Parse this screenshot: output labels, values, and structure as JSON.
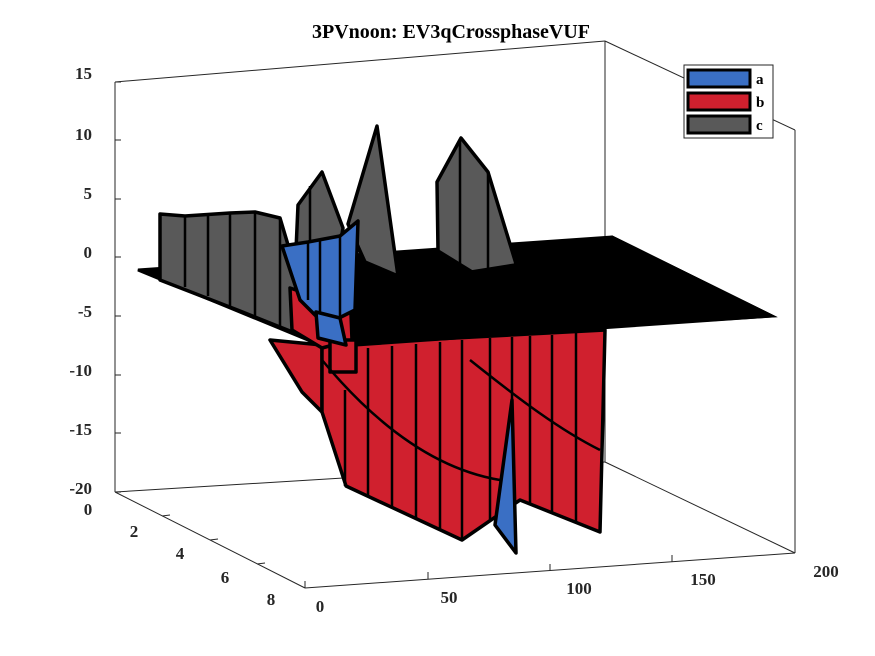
{
  "chart_data": {
    "type": "area",
    "title": "3PVnoon: EV3qCrossphaseVUF",
    "xlabel": "",
    "ylabel": "",
    "zlabel": "",
    "xlim": [
      0,
      200
    ],
    "ylim": [
      0,
      8
    ],
    "zlim": [
      -20,
      15
    ],
    "x_ticks": [
      "0",
      "50",
      "100",
      "150",
      "200"
    ],
    "y_ticks": [
      "0",
      "2",
      "4",
      "6",
      "8"
    ],
    "z_ticks": [
      "15",
      "10",
      "5",
      "0",
      "-5",
      "-10",
      "-15",
      "-20"
    ],
    "legend_position": "top-right",
    "colors": {
      "a": "#3a6fc4",
      "b": "#d0202e",
      "c": "#595959",
      "flat": "#000000"
    },
    "series": [
      {
        "name": "a",
        "description": "ribbon slab near y=3",
        "points": [
          [
            0,
            3,
            -1
          ],
          [
            0,
            3,
            0.5
          ],
          [
            5,
            3,
            2
          ],
          [
            8,
            3,
            3
          ],
          [
            11,
            3,
            5.5
          ],
          [
            15,
            3,
            7.5
          ],
          [
            18,
            3,
            3
          ],
          [
            19,
            3,
            -1
          ],
          [
            23,
            3,
            -1
          ],
          [
            30,
            3,
            -2
          ],
          [
            39,
            3,
            -3
          ],
          [
            48,
            3,
            -3.5
          ],
          [
            58,
            3,
            -3.5
          ],
          [
            68,
            3,
            -4
          ],
          [
            78,
            3,
            -17
          ],
          [
            90,
            3,
            -19
          ],
          [
            92,
            3,
            -15
          ],
          [
            100,
            3,
            -1
          ]
        ]
      },
      {
        "name": "b",
        "description": "ribbon slab near y=4",
        "points": [
          [
            0,
            4,
            -1
          ],
          [
            7,
            4,
            -3.5
          ],
          [
            10,
            4,
            -6
          ],
          [
            13,
            4,
            -5
          ],
          [
            15,
            4,
            -6
          ],
          [
            18,
            4,
            -5
          ],
          [
            22,
            4,
            -8
          ],
          [
            32,
            4,
            -18
          ],
          [
            60,
            4,
            -19.5
          ],
          [
            64,
            4,
            -4
          ],
          [
            74,
            4,
            -19.5
          ],
          [
            86,
            4,
            -19.5
          ],
          [
            90,
            4,
            -16
          ],
          [
            100,
            4,
            -2
          ]
        ]
      },
      {
        "name": "c",
        "description": "ribbon slab near y=2",
        "points": [
          [
            0,
            2,
            -1
          ],
          [
            0,
            2,
            5.5
          ],
          [
            5,
            2,
            5.5
          ],
          [
            10,
            2,
            5.8
          ],
          [
            15,
            2,
            6
          ],
          [
            20,
            2,
            6.2
          ],
          [
            25,
            2,
            6
          ],
          [
            32,
            2,
            -2
          ],
          [
            40,
            2,
            0
          ],
          [
            45,
            2,
            -1.5
          ],
          [
            52,
            2,
            8
          ],
          [
            58,
            2,
            6
          ],
          [
            64,
            2,
            -1.5
          ],
          [
            75,
            2,
            -2
          ],
          [
            90,
            2,
            6
          ],
          [
            95,
            2,
            11
          ],
          [
            100,
            2,
            8
          ],
          [
            110,
            2,
            -3
          ],
          [
            120,
            2,
            -5
          ],
          [
            130,
            2,
            4
          ],
          [
            135,
            2,
            12
          ],
          [
            140,
            2,
            10
          ],
          [
            150,
            2,
            0
          ],
          [
            155,
            2,
            -4
          ]
        ]
      }
    ]
  }
}
